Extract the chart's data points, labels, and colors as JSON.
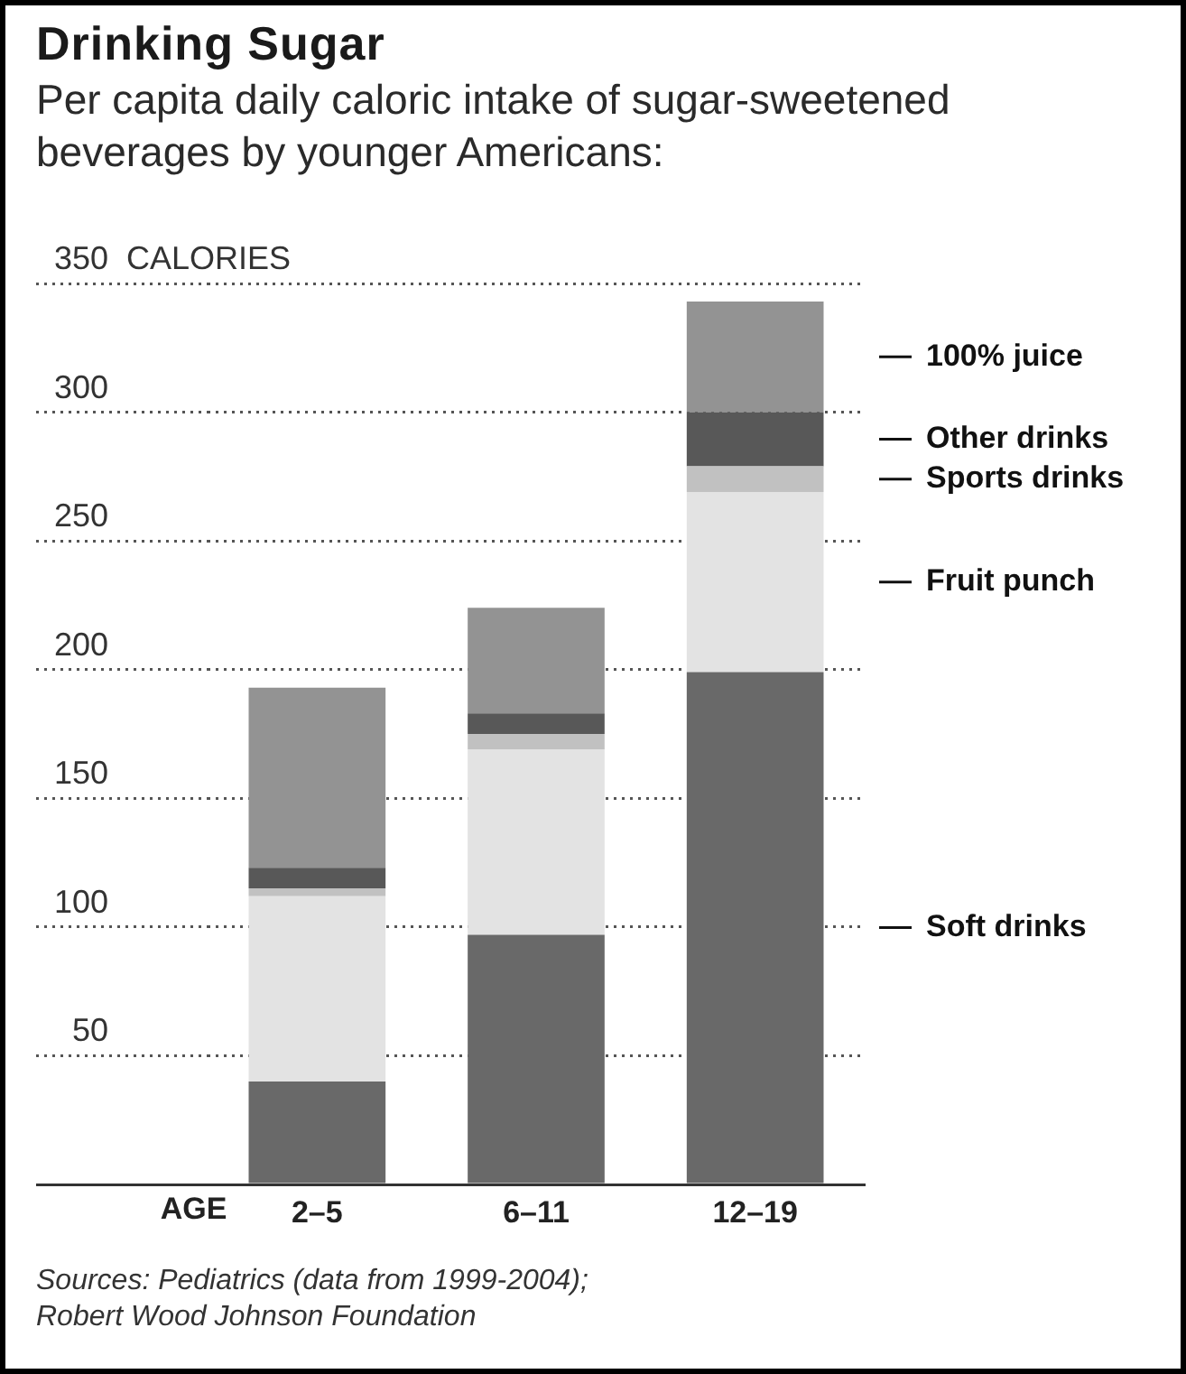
{
  "chart_data": {
    "type": "bar",
    "title": "Drinking Sugar",
    "subtitle": "Per capita daily caloric intake of sugar-sweetened beverages by younger Americans:",
    "xlabel": "AGE",
    "ylabel": "CALORIES",
    "categories": [
      "2–5",
      "6–11",
      "12–19"
    ],
    "stacked": true,
    "series": [
      {
        "name": "Soft drinks",
        "color": "#696969",
        "values": [
          40,
          97,
          199
        ]
      },
      {
        "name": "Fruit punch",
        "color": "#e3e3e3",
        "values": [
          72,
          72,
          70
        ]
      },
      {
        "name": "Sports drinks",
        "color": "#c1c1c1",
        "values": [
          3,
          6,
          10
        ]
      },
      {
        "name": "Other drinks",
        "color": "#585858",
        "values": [
          8,
          8,
          21
        ]
      },
      {
        "name": "100% juice",
        "color": "#939393",
        "values": [
          70,
          41,
          43
        ]
      }
    ],
    "ylim": [
      0,
      350
    ],
    "yticks": [
      {
        "value": 0,
        "label": null
      },
      50,
      100,
      150,
      200,
      250,
      300,
      350
    ],
    "grid": "y",
    "annotations": [
      "Sources: Pediatrics (data from 1999-2004); Robert Wood Johnson Foundation"
    ]
  }
}
